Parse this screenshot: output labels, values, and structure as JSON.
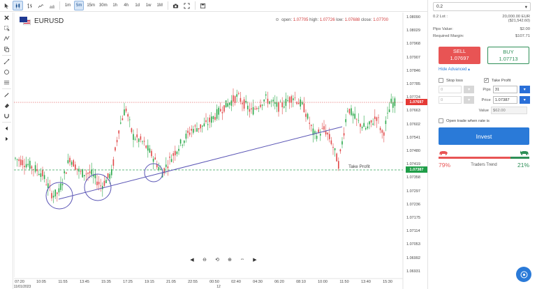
{
  "toolbar": {
    "timeframes": [
      "1m",
      "5m",
      "15m",
      "30m",
      "1h",
      "4h",
      "1d",
      "1w",
      "1M"
    ],
    "active_timeframe": "5m"
  },
  "symbol": "EURUSD",
  "ohlc": {
    "open_label": "open:",
    "open": "1.07705",
    "high_label": "high:",
    "high": "1.07726",
    "low_label": "low:",
    "low": "1.07688",
    "close_label": "close:",
    "close": "1.07700"
  },
  "price_axis": [
    "1.08090",
    "1.08029",
    "1.07968",
    "1.07907",
    "1.07846",
    "1.07785",
    "1.07724",
    "1.07663",
    "1.07602",
    "1.07541",
    "1.07480",
    "1.07419",
    "1.07358",
    "1.07297",
    "1.07236",
    "1.07175",
    "1.07114",
    "1.07053",
    "1.06992",
    "1.06931"
  ],
  "current_price_tag": "1.07697",
  "take_profit": {
    "label": "Take Profit",
    "price": "1.07387"
  },
  "time_axis": [
    "07:20",
    "10:05",
    "11:55",
    "13:45",
    "15:35",
    "17:25",
    "19:15",
    "21:05",
    "22:55",
    "00:50",
    "02:40",
    "04:30",
    "06:20",
    "08:10",
    "10:00",
    "11:50",
    "13:40",
    "15:30"
  ],
  "date_label": "11/01/2023",
  "day_label": "12",
  "panel": {
    "amount": "0.2",
    "lot_label": "0.2 Lot :",
    "lot_value": "20,000.00 EUR",
    "lot_usd": "($21,542.60)",
    "pips_value_label": "Pips Value:",
    "pips_value": "$2.00",
    "margin_label": "Required Margin:",
    "margin": "$107.71",
    "sell_label": "SELL",
    "sell_price": "1.07697",
    "buy_label": "BUY",
    "buy_price": "1.07713",
    "hide_advanced": "Hide Advanced ▴",
    "stop_loss": "Stop loss",
    "take_profit": "Take Profit",
    "sl_pips": "0",
    "sl_price": "0",
    "pips_label": "Pips",
    "pips_input": "31",
    "price_label": "Price",
    "price_input": "1.07387",
    "value_label": "Value",
    "value": "$62.00",
    "open_trade_label": "Open trade when rate is",
    "invest": "Invest",
    "trend_red": "79%",
    "trend_label": "Traders Trend",
    "trend_green": "21%",
    "trend_green_fraction": 0.21
  },
  "colors": {
    "sell": "#e85454",
    "buy": "#2e8f57",
    "accent": "#2a7ad8",
    "candle_up": "#2aa84a",
    "candle_down": "#e04848"
  }
}
